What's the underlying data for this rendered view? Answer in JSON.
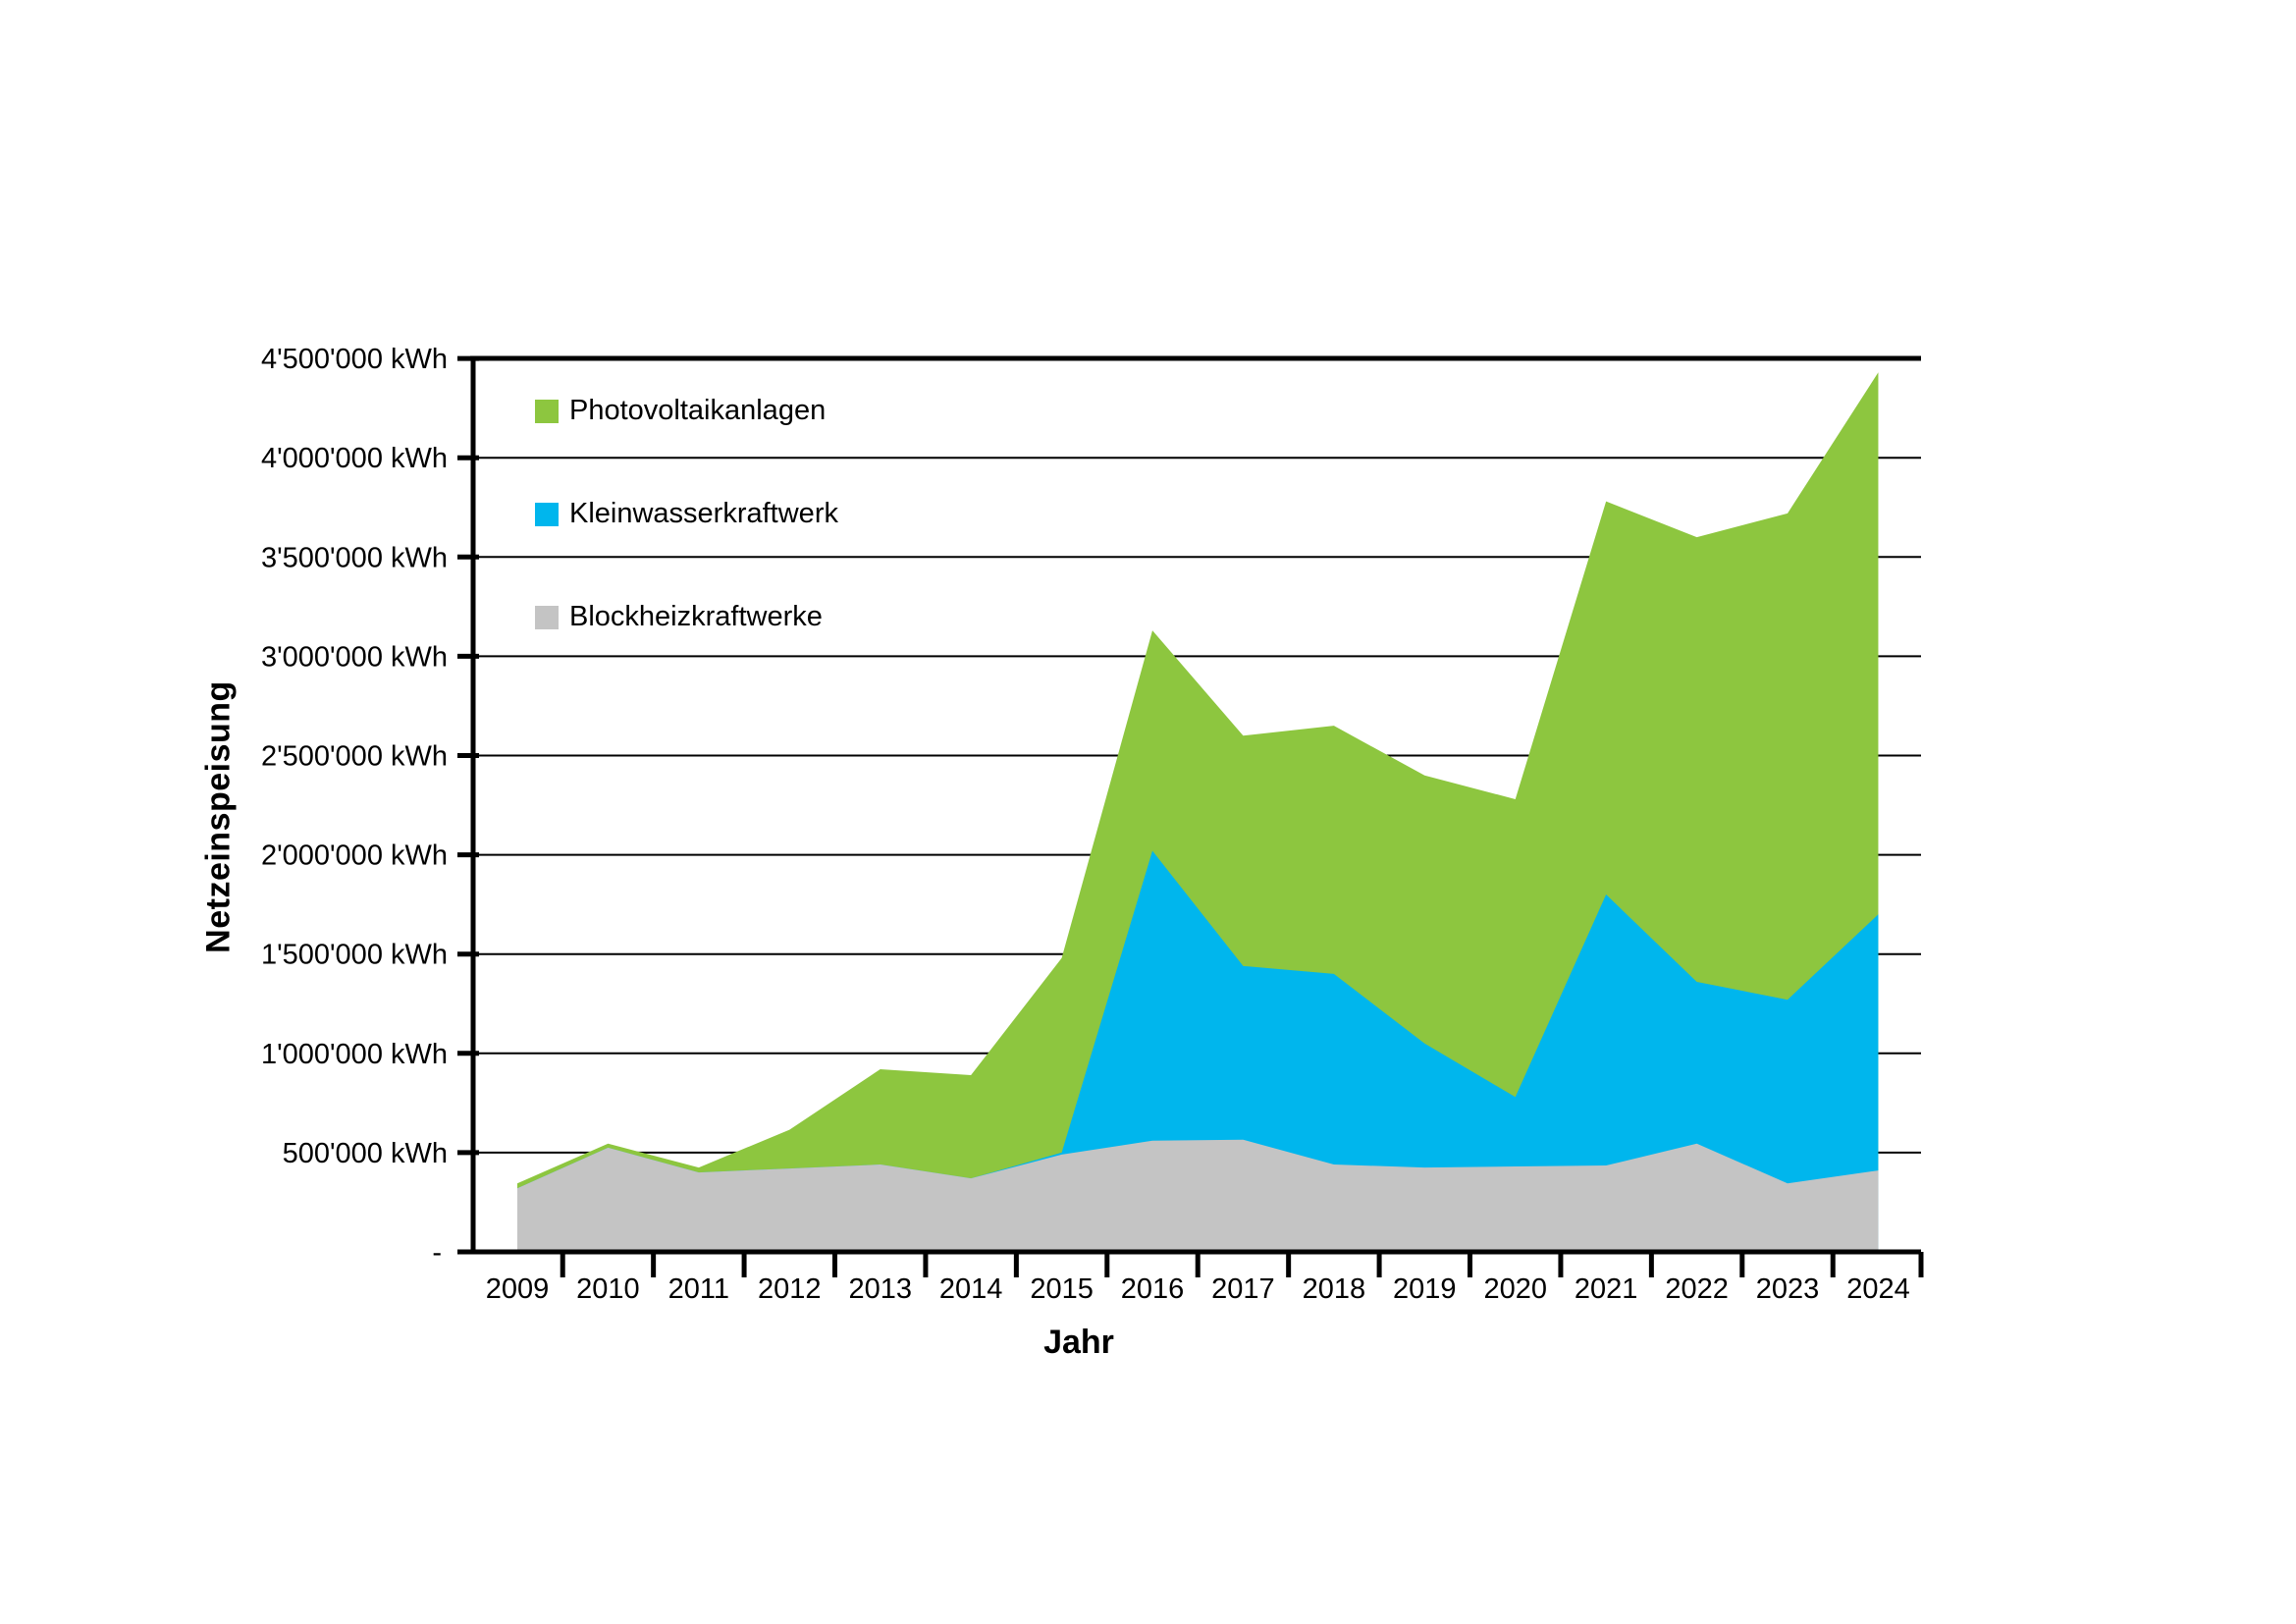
{
  "chart_data": {
    "type": "area",
    "stacked": true,
    "title": "",
    "xlabel": "Jahr",
    "ylabel": "Netzeinspeisung",
    "x": [
      2009,
      2010,
      2011,
      2012,
      2013,
      2014,
      2015,
      2016,
      2017,
      2018,
      2019,
      2020,
      2021,
      2022,
      2023,
      2024
    ],
    "series": [
      {
        "name": "Blockheizkraftwerke",
        "color": "#C4C4C4",
        "values": [
          320000,
          525000,
          400000,
          420000,
          440000,
          370000,
          490000,
          560000,
          565000,
          440000,
          425000,
          430000,
          435000,
          545000,
          345000,
          410000
        ]
      },
      {
        "name": "Kleinwasserkraftwerk",
        "color": "#00B6ED",
        "values": [
          0,
          0,
          0,
          0,
          0,
          0,
          10000,
          1460000,
          875000,
          960000,
          625000,
          350000,
          1365000,
          815000,
          925000,
          1290000
        ]
      },
      {
        "name": "Photovoltaikanlagen",
        "color": "#8DC63F",
        "values": [
          25000,
          20000,
          25000,
          195000,
          480000,
          520000,
          980000,
          1110000,
          1160000,
          1250000,
          1350000,
          1500000,
          1980000,
          2240000,
          2450000,
          2730000
        ]
      }
    ],
    "legend": {
      "position": "inside-top-left",
      "items": [
        {
          "label": "Photovoltaikanlagen",
          "color": "#8DC63F"
        },
        {
          "label": "Kleinwasserkraftwerk",
          "color": "#00B6ED"
        },
        {
          "label": "Blockheizkraftwerke",
          "color": "#C4C4C4"
        }
      ]
    },
    "y_axis": {
      "min": 0,
      "max": 4500000,
      "step": 500000,
      "unit": "kWh",
      "zero_label": "-",
      "tick_format": "apostrophe-thousands",
      "grid": true
    },
    "x_axis": {
      "label": "Jahr",
      "tick_labels": [
        "2009",
        "2010",
        "2011",
        "2012",
        "2013",
        "2014",
        "2015",
        "2016",
        "2017",
        "2018",
        "2019",
        "2020",
        "2021",
        "2022",
        "2023",
        "2024"
      ]
    },
    "colors": {
      "axis_line": "#000000",
      "gridline": "#000000",
      "text": "#000000",
      "background": "#FFFFFF"
    }
  }
}
